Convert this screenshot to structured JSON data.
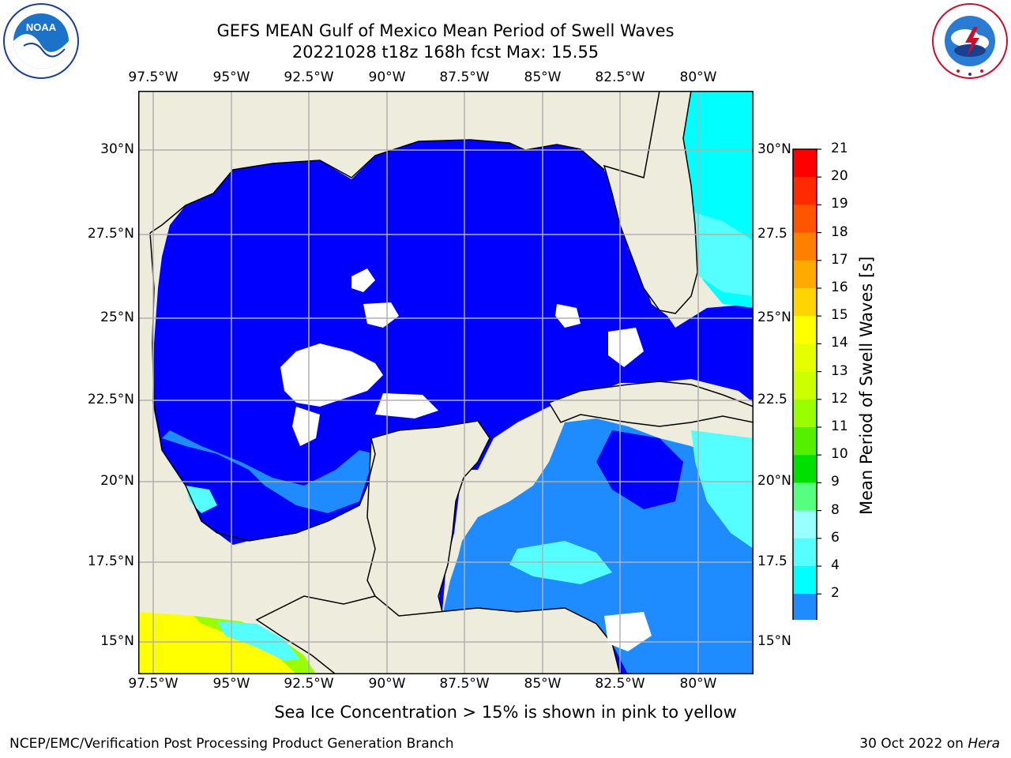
{
  "title": {
    "line1": "GEFS MEAN Gulf of Mexico Mean Period of Swell Waves",
    "line2": "20221028 t18z 168h fcst   Max: 15.55"
  },
  "logos": {
    "left": {
      "text": "NOAA",
      "icon": "noaa-logo"
    },
    "right": {
      "text": "NATIONAL WEATHER SERVICE",
      "icon": "nws-logo"
    }
  },
  "map": {
    "lon_labels": [
      "97.5°W",
      "95°W",
      "92.5°W",
      "90°W",
      "87.5°W",
      "85°W",
      "82.5°W",
      "80°W"
    ],
    "lat_labels_left": [
      "30°N",
      "27.5°N",
      "25°N",
      "22.5°N",
      "20°N",
      "17.5°N",
      "15°N"
    ],
    "lat_labels_right": [
      "30°N",
      "27.5",
      "25°N",
      "22.5",
      "20°N",
      "17.5",
      "15°N"
    ],
    "colors": {
      "land": "#eeecdc",
      "ocean_low": "#0000ff",
      "grid": "#b0b0b0"
    }
  },
  "colorbar": {
    "title": "Mean Period of Swell Waves [s]",
    "ticks": [
      "21",
      "20",
      "19",
      "18",
      "17",
      "16",
      "15",
      "14",
      "13",
      "12",
      "11",
      "10",
      "9",
      "8",
      "6",
      "4",
      "2"
    ],
    "colors": [
      "#ff0000",
      "#ff2a00",
      "#ff5500",
      "#ff8000",
      "#ffaa00",
      "#ffd400",
      "#ffff00",
      "#e6ff00",
      "#ccff00",
      "#99ff00",
      "#55f000",
      "#00e000",
      "#55ff7f",
      "#99ffff",
      "#55ffff",
      "#00ffff",
      "#1e8cff",
      "#0000ff"
    ]
  },
  "note": "Sea Ice Concentration > 15% is shown in pink to yellow",
  "footer": {
    "left": "NCEP/EMC/Verification Post Processing Product Generation Branch",
    "right_prefix": "30 Oct 2022 on ",
    "right_machine": "Hera"
  }
}
